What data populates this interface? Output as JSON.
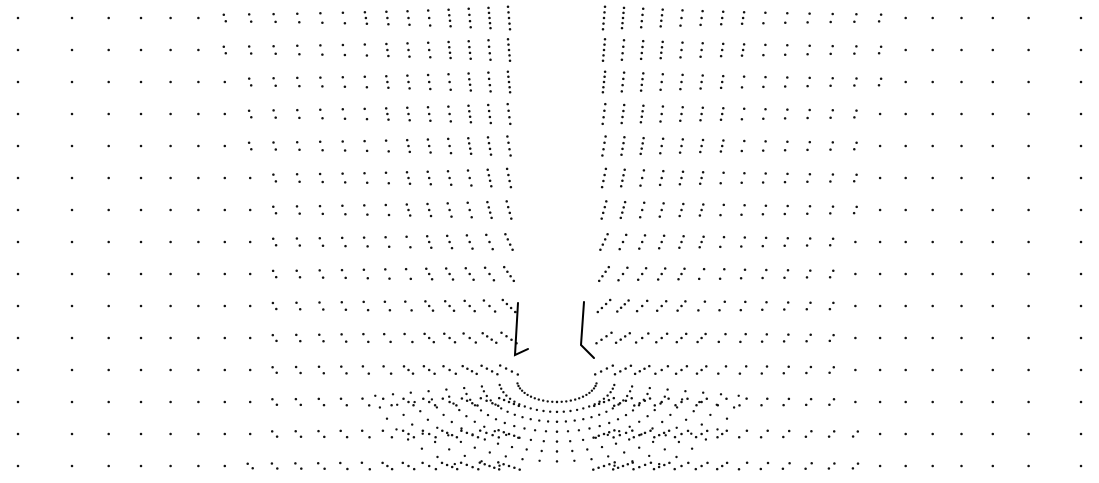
{
  "figure": {
    "kind": "velocity-vector-field",
    "background_color": "#ffffff",
    "vector_color": "#111111",
    "marker_color": "#000000",
    "vectors_visible": true,
    "text_labels": []
  }
}
